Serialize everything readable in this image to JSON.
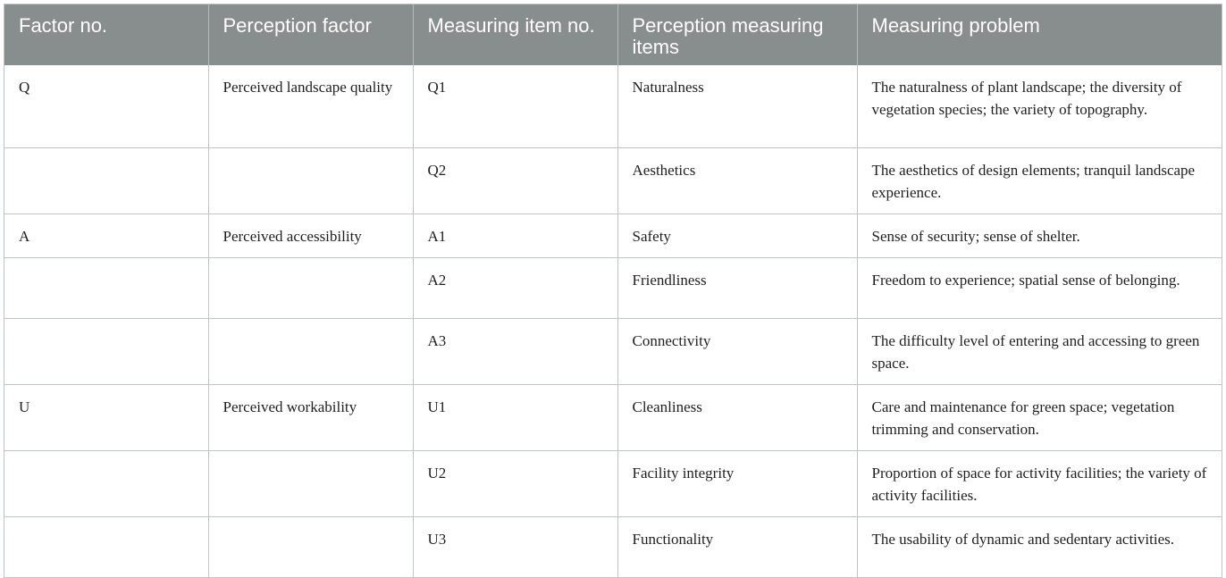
{
  "table": {
    "headers": [
      "Factor no.",
      "Perception factor",
      "Measuring item no.",
      "Perception measuring items",
      "Measuring problem"
    ],
    "rows": [
      [
        "Q",
        "Perceived landscape quality",
        "Q1",
        "Naturalness",
        "The naturalness of plant landscape; the diversity of vegetation species; the variety of topography."
      ],
      [
        "",
        "",
        "Q2",
        "Aesthetics",
        "The aesthetics of design elements; tranquil landscape experience."
      ],
      [
        "A",
        "Perceived accessibility",
        "A1",
        "Safety",
        "Sense of security; sense of shelter."
      ],
      [
        "",
        "",
        "A2",
        "Friendliness",
        "Freedom to experience; spatial sense of belonging."
      ],
      [
        "",
        "",
        "A3",
        "Connectivity",
        "The difficulty level of entering and accessing to green space."
      ],
      [
        "U",
        "Perceived workability",
        "U1",
        "Cleanliness",
        "Care and maintenance for green space; vegetation trimming and conservation."
      ],
      [
        "",
        "",
        "U2",
        "Facility integrity",
        "Proportion of space for activity facilities; the variety of activity facilities."
      ],
      [
        "",
        "",
        "U3",
        "Functionality",
        "The usability of dynamic and sedentary activities."
      ]
    ]
  },
  "colors": {
    "header_bg": "#888e8d",
    "header_text": "#ffffff",
    "grid_line": "#bfc4c4",
    "body_text": "#1f1f1f"
  }
}
